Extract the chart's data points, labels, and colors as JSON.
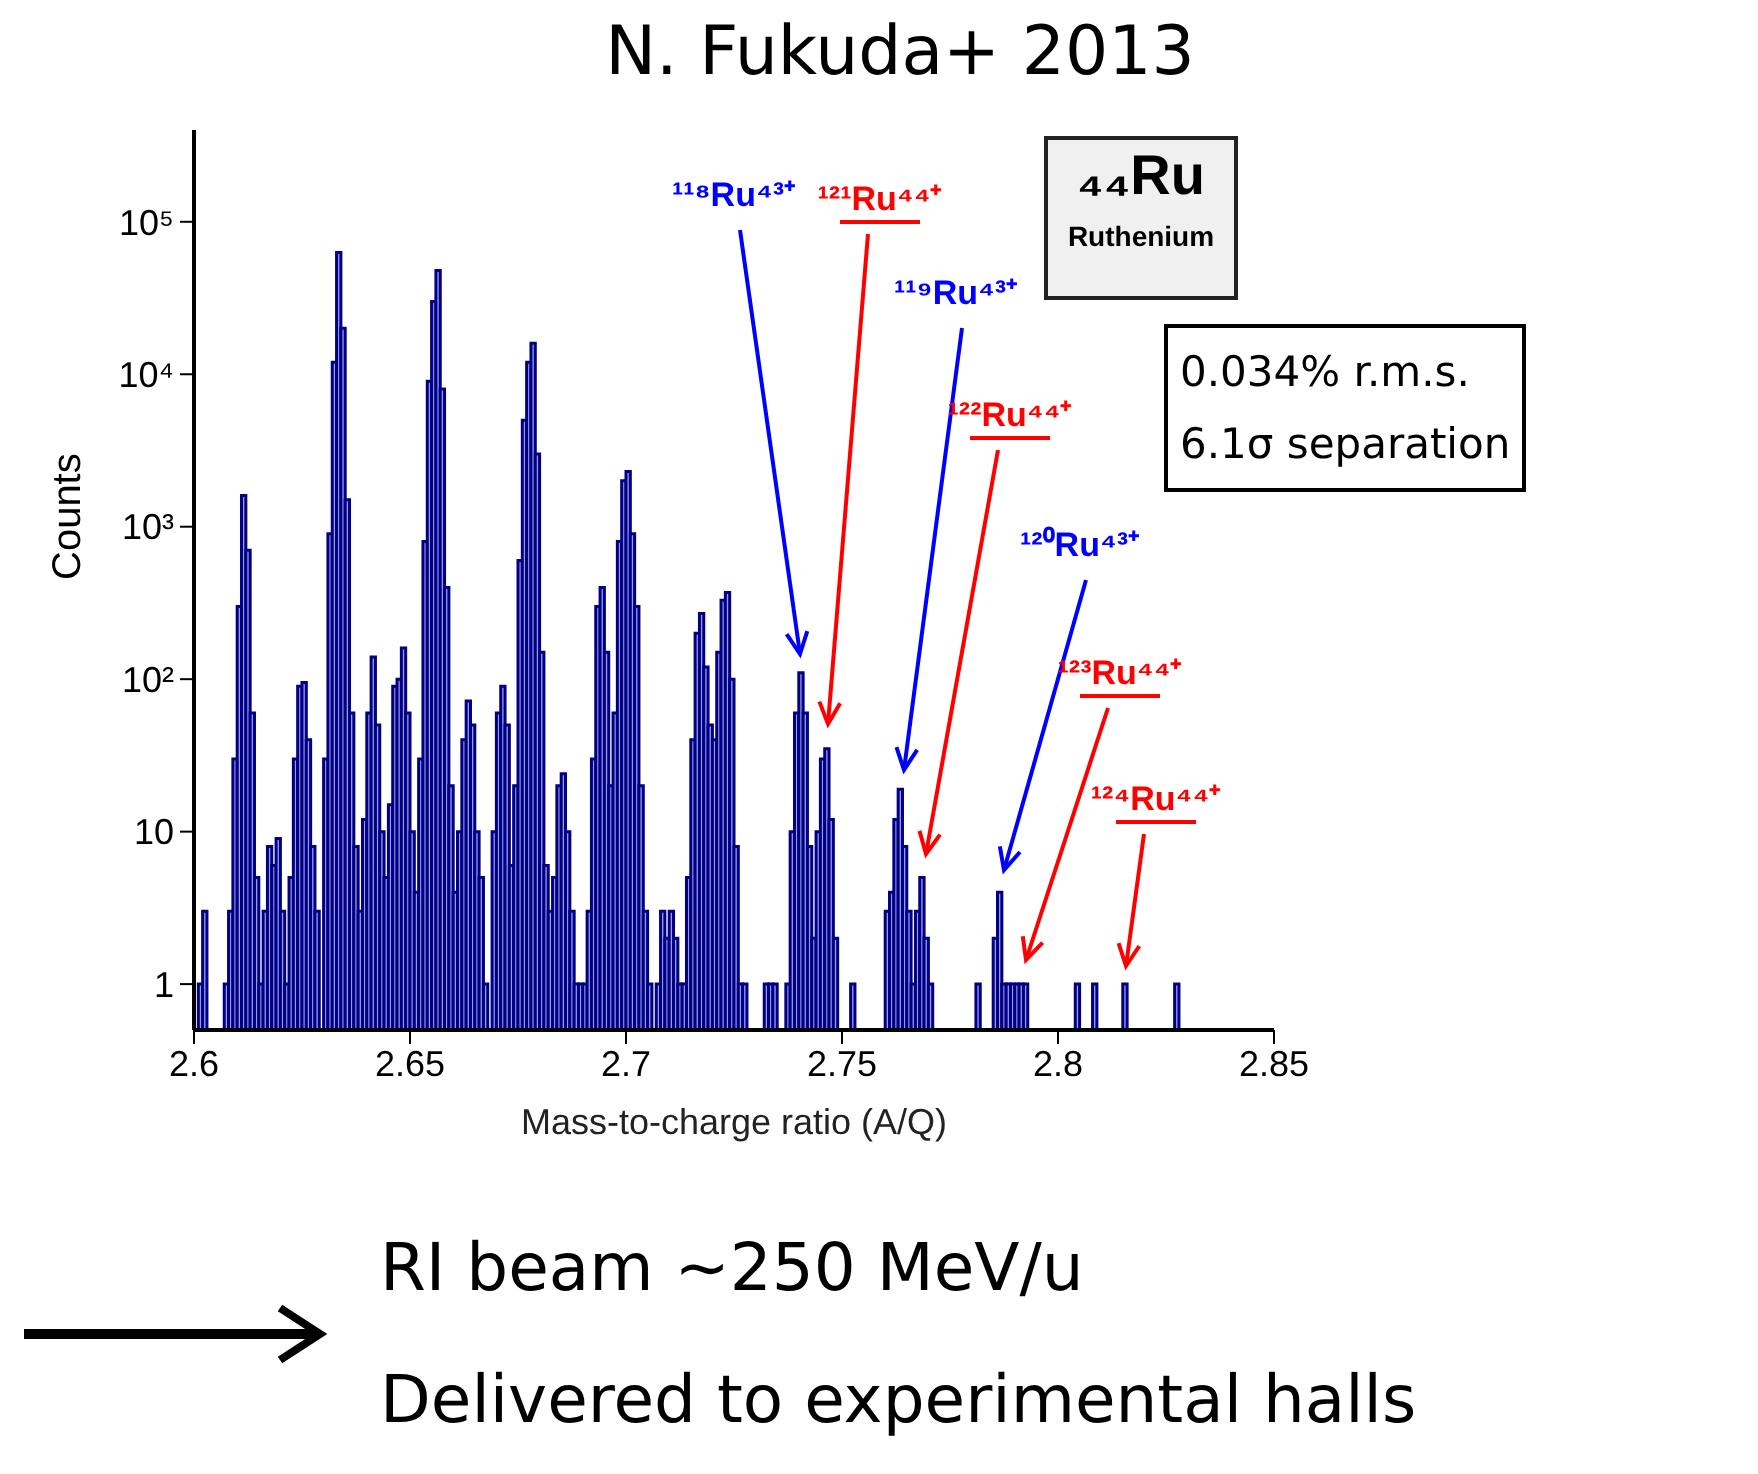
{
  "chart_data": {
    "type": "histogram",
    "title": "N. Fukuda+ 2013",
    "xlabel": "Mass-to-charge ratio (A/Q)",
    "ylabel": "Counts",
    "color": "#9999f5",
    "log": true,
    "bins": [
      2.6,
      2.601,
      2.602,
      2.603,
      2.604,
      2.605,
      2.606,
      2.607,
      2.608,
      2.609,
      2.61,
      2.611,
      2.612,
      2.613,
      2.614,
      2.615,
      2.616,
      2.617,
      2.618,
      2.619,
      2.62,
      2.621,
      2.622,
      2.623,
      2.624,
      2.625,
      2.626,
      2.627,
      2.628,
      2.629,
      2.63,
      2.631,
      2.632,
      2.633,
      2.634,
      2.635,
      2.636,
      2.637,
      2.638,
      2.639,
      2.64,
      2.641,
      2.642,
      2.643,
      2.644,
      2.645,
      2.646,
      2.647,
      2.648,
      2.649,
      2.65,
      2.651,
      2.652,
      2.653,
      2.654,
      2.655,
      2.656,
      2.657,
      2.658,
      2.659,
      2.66,
      2.661,
      2.662,
      2.663,
      2.664,
      2.665,
      2.666,
      2.667,
      2.668,
      2.669,
      2.67,
      2.671,
      2.672,
      2.673,
      2.674,
      2.675,
      2.676,
      2.677,
      2.678,
      2.679,
      2.68,
      2.681,
      2.682,
      2.683,
      2.684,
      2.685,
      2.686,
      2.687,
      2.688,
      2.689,
      2.69,
      2.691,
      2.692,
      2.693,
      2.694,
      2.695,
      2.696,
      2.697,
      2.698,
      2.699,
      2.7,
      2.701,
      2.702,
      2.703,
      2.704,
      2.705,
      2.706,
      2.707,
      2.708,
      2.709,
      2.71,
      2.711,
      2.712,
      2.713,
      2.714,
      2.715,
      2.716,
      2.717,
      2.718,
      2.719,
      2.72,
      2.721,
      2.722,
      2.723,
      2.724,
      2.725,
      2.726,
      2.727,
      2.728,
      2.729,
      2.73,
      2.731,
      2.732,
      2.733,
      2.734,
      2.735,
      2.736,
      2.737,
      2.738,
      2.739,
      2.74,
      2.741,
      2.742,
      2.743,
      2.744,
      2.745,
      2.746,
      2.747,
      2.748,
      2.749,
      2.75,
      2.751,
      2.752,
      2.753,
      2.754,
      2.755,
      2.756,
      2.757,
      2.758,
      2.759,
      2.76,
      2.761,
      2.762,
      2.763,
      2.764,
      2.765,
      2.766,
      2.767,
      2.768,
      2.769,
      2.77,
      2.771,
      2.772,
      2.773,
      2.774,
      2.775,
      2.776,
      2.777,
      2.778,
      2.779,
      2.78,
      2.781,
      2.782,
      2.783,
      2.784,
      2.785,
      2.786,
      2.787,
      2.788,
      2.789,
      2.79,
      2.791,
      2.792,
      2.793,
      2.794,
      2.795,
      2.796,
      2.797,
      2.798,
      2.799,
      2.8,
      2.801,
      2.802,
      2.803,
      2.804,
      2.805,
      2.806,
      2.807,
      2.808,
      2.809,
      2.81,
      2.811,
      2.812,
      2.813,
      2.814,
      2.815,
      2.816,
      2.817,
      2.818,
      2.819,
      2.82,
      2.821,
      2.822,
      2.823,
      2.824,
      2.825,
      2.826,
      2.827,
      2.828,
      2.829,
      2.83,
      2.831,
      2.832,
      2.833,
      2.834,
      2.835,
      2.836,
      2.837,
      2.838,
      2.839,
      2.84,
      2.841,
      2.842,
      2.843,
      2.844,
      2.845,
      2.846,
      2.847,
      2.848,
      2.849,
      2.85
    ],
    "values": [
      null,
      1,
      3,
      null,
      null,
      null,
      null,
      1,
      3,
      30,
      300,
      1600,
      700,
      60,
      5,
      1,
      3,
      8,
      6,
      9,
      3,
      1,
      5,
      30,
      90,
      95,
      40,
      8,
      3,
      null,
      30,
      900,
      12000,
      63000,
      20000,
      1500,
      60,
      8,
      3,
      12,
      60,
      140,
      50,
      10,
      5,
      15,
      90,
      100,
      160,
      60,
      10,
      4,
      30,
      800,
      9000,
      30000,
      48000,
      8000,
      400,
      20,
      4,
      10,
      40,
      72,
      50,
      10,
      5,
      1,
      null,
      10,
      60,
      90,
      50,
      6,
      20,
      600,
      5000,
      12000,
      16000,
      3000,
      150,
      6,
      3,
      5,
      20,
      24,
      10,
      3,
      1,
      1,
      1,
      3,
      30,
      300,
      400,
      150,
      20,
      60,
      800,
      2000,
      2300,
      900,
      300,
      20,
      3,
      1,
      null,
      1,
      3,
      2,
      3,
      2,
      1,
      1,
      5,
      40,
      200,
      270,
      120,
      50,
      40,
      150,
      330,
      370,
      100,
      8,
      1,
      1,
      null,
      null,
      null,
      null,
      1,
      1,
      1,
      null,
      null,
      1,
      10,
      60,
      110,
      60,
      8,
      2,
      10,
      30,
      35,
      12,
      2,
      null,
      null,
      null,
      1,
      null,
      null,
      null,
      null,
      null,
      null,
      null,
      3,
      4,
      12,
      19,
      8,
      3,
      1,
      3,
      5,
      2,
      1,
      null,
      null,
      null,
      null,
      null,
      null,
      null,
      null,
      null,
      null,
      1,
      null,
      null,
      null,
      2,
      4,
      1,
      1,
      1,
      1,
      1,
      1,
      null,
      null,
      null,
      null,
      null,
      null,
      null,
      null,
      null,
      null,
      null,
      1,
      null,
      null,
      null,
      1,
      null,
      null,
      null,
      null,
      null,
      null,
      1,
      null,
      null,
      null,
      null,
      null,
      null,
      null,
      null,
      null,
      null,
      null,
      1,
      null,
      null,
      null,
      null,
      null,
      null,
      null,
      null,
      null,
      null,
      null,
      null,
      null,
      null,
      null,
      null,
      null,
      null,
      null,
      null,
      null,
      null
    ],
    "xlim": [
      2.6,
      2.85
    ],
    "xticks": [
      2.6,
      2.65,
      2.7,
      2.75,
      2.8,
      2.85
    ],
    "ylim": [
      0.5,
      400000
    ],
    "yticks": [
      1,
      10,
      {
        "value": 100,
        "label": "10²"
      },
      {
        "value": 1000,
        "label": "10³"
      },
      {
        "value": 10000,
        "label": "10⁴"
      },
      {
        "value": 100000,
        "label": "10⁵"
      }
    ],
    "annotations": [
      "¹¹⁸Ru⁴³⁺",
      "¹²¹Ru⁴⁴⁺",
      "¹¹⁹Ru⁴³⁺",
      "¹²²Ru⁴⁴⁺",
      "¹²⁰Ru⁴³⁺",
      "¹²³Ru⁴⁴⁺",
      "¹²⁴Ru⁴⁴⁺",
      "₄₄Ru",
      "Ruthenium",
      "0.034% r.m.s.",
      "6.1σ separation",
      "RI beam ~250 MeV/u",
      "Delivered to experimental halls"
    ]
  }
}
